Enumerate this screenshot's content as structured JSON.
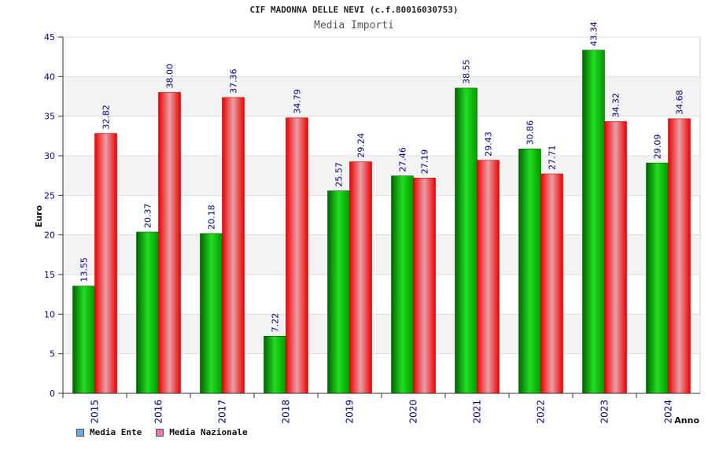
{
  "chart_data": {
    "type": "bar",
    "title": "CIF MADONNA DELLE NEVI (c.f.80016030753)",
    "subtitle": "Media Importi",
    "xlabel": "Anno",
    "ylabel": "Euro",
    "ylim": [
      0,
      45
    ],
    "yticks": [
      0,
      5,
      10,
      15,
      20,
      25,
      30,
      35,
      40,
      45
    ],
    "grid": true,
    "legend_position": "bottom-left",
    "categories": [
      "2015",
      "2016",
      "2017",
      "2018",
      "2019",
      "2020",
      "2021",
      "2022",
      "2023",
      "2024"
    ],
    "series": [
      {
        "name": "Media Ente",
        "color": "#00cc00",
        "legend_color": "#6aa8e6",
        "values": [
          13.55,
          20.37,
          20.18,
          7.22,
          25.57,
          27.46,
          38.55,
          30.86,
          43.34,
          29.09
        ],
        "labels": [
          "13.55",
          "20.37",
          "20.18",
          "7.22",
          "25.57",
          "27.46",
          "38.55",
          "30.86",
          "43.34",
          "29.09"
        ]
      },
      {
        "name": "Media Nazionale",
        "color": "#ee1111",
        "legend_color": "#e67aae",
        "values": [
          32.82,
          38.0,
          37.36,
          34.79,
          29.24,
          27.19,
          29.43,
          27.71,
          34.32,
          34.68
        ],
        "labels": [
          "32.82",
          "38.00",
          "37.36",
          "34.79",
          "29.24",
          "27.19",
          "29.43",
          "27.71",
          "34.32",
          "34.68"
        ]
      }
    ]
  }
}
